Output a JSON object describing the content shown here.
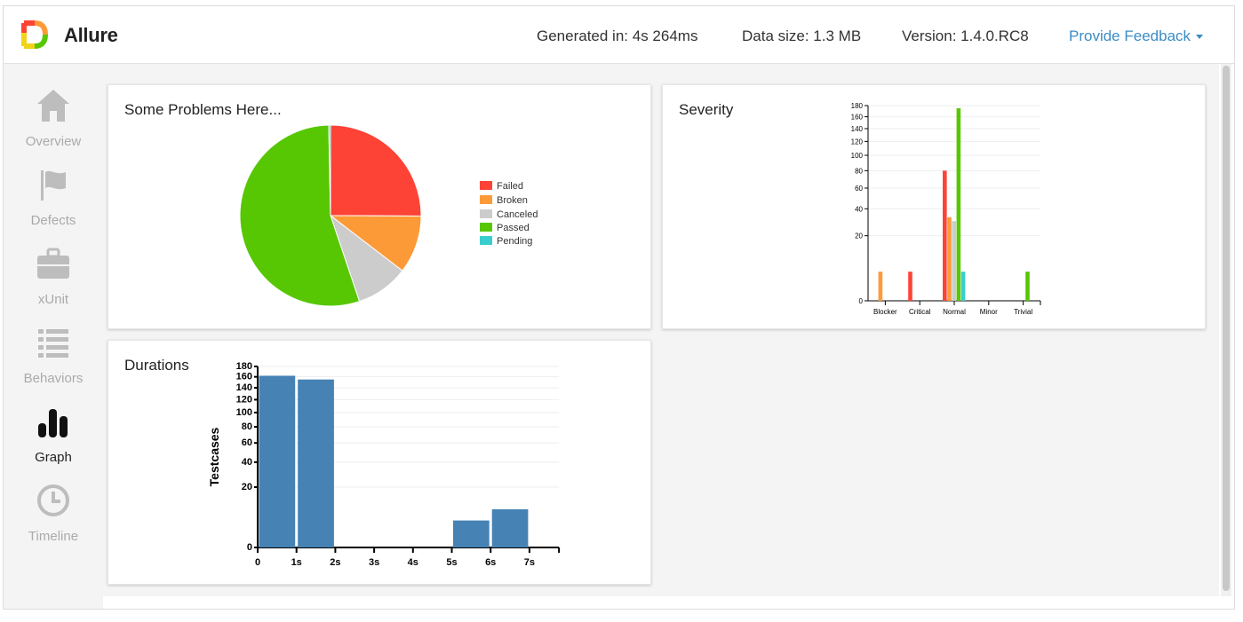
{
  "header": {
    "brand": "Allure",
    "generated": "Generated in: 4s 264ms",
    "data_size": "Data size: 1.3 MB",
    "version": "Version: 1.4.0.RC8",
    "feedback": "Provide Feedback"
  },
  "sidebar": {
    "items": [
      {
        "label": "Overview",
        "icon": "home-icon"
      },
      {
        "label": "Defects",
        "icon": "flag-icon"
      },
      {
        "label": "xUnit",
        "icon": "briefcase-icon"
      },
      {
        "label": "Behaviors",
        "icon": "list-icon"
      },
      {
        "label": "Graph",
        "icon": "bar-chart-icon",
        "active": true
      },
      {
        "label": "Timeline",
        "icon": "clock-icon"
      }
    ]
  },
  "colors": {
    "failed": "#fd4335",
    "broken": "#fd9a38",
    "canceled": "#cccccc",
    "passed": "#57c704",
    "pending": "#39cecd",
    "duration": "#4682b4",
    "accent": "#3b8cc5"
  },
  "cards": {
    "status_title": "Some Problems Here...",
    "severity_title": "Severity",
    "durations_title": "Durations"
  },
  "chart_data": [
    {
      "type": "pie",
      "title": "Some Problems Here...",
      "labels": [
        "Failed",
        "Broken",
        "Canceled",
        "Passed",
        "Pending"
      ],
      "values": [
        80,
        33,
        30,
        175,
        1
      ],
      "legend": "right"
    },
    {
      "type": "bar",
      "title": "Severity",
      "categories": [
        "Blocker",
        "Critical",
        "Normal",
        "Minor",
        "Trivial"
      ],
      "series": [
        {
          "name": "Failed",
          "values": [
            0,
            4,
            80,
            0,
            0
          ]
        },
        {
          "name": "Broken",
          "values": [
            4,
            0,
            33,
            0,
            0
          ]
        },
        {
          "name": "Canceled",
          "values": [
            0,
            0,
            30,
            0,
            0
          ]
        },
        {
          "name": "Passed",
          "values": [
            0,
            0,
            175,
            0,
            4
          ]
        },
        {
          "name": "Pending",
          "values": [
            0,
            0,
            4,
            0,
            0
          ]
        }
      ],
      "yscale": "sqrt",
      "yticks": [
        0,
        20,
        40,
        60,
        80,
        100,
        120,
        140,
        160,
        180
      ],
      "ylim": [
        0,
        180
      ],
      "grid": true
    },
    {
      "type": "bar",
      "title": "Durations",
      "ylabel": "Testcases",
      "xticks": [
        "0",
        "1s",
        "2s",
        "3s",
        "4s",
        "5s",
        "6s",
        "7s"
      ],
      "bins": [
        {
          "x0": 0,
          "x1": 1,
          "value": 162
        },
        {
          "x0": 1,
          "x1": 2,
          "value": 155
        },
        {
          "x0": 5,
          "x1": 6,
          "value": 4
        },
        {
          "x0": 6,
          "x1": 7,
          "value": 8
        }
      ],
      "yscale": "sqrt",
      "yticks": [
        0,
        20,
        40,
        60,
        80,
        100,
        120,
        140,
        160,
        180
      ],
      "ylim": [
        0,
        180
      ],
      "grid": true
    }
  ]
}
